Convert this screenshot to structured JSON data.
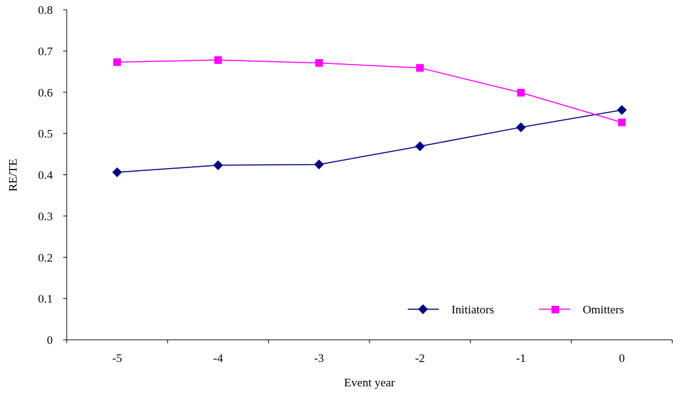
{
  "chart_data": {
    "type": "line",
    "title": "",
    "xlabel": "Event year",
    "ylabel": "RE/TE",
    "categories": [
      "-5",
      "-4",
      "-3",
      "-2",
      "-1",
      "0"
    ],
    "ylim": [
      0,
      0.8
    ],
    "yticks": [
      "0",
      "0.1",
      "0.2",
      "0.3",
      "0.4",
      "0.5",
      "0.6",
      "0.7",
      "0.8"
    ],
    "grid": false,
    "legend_position": "bottom-right",
    "series": [
      {
        "name": "Initiators",
        "color": "#000080",
        "marker": "diamond",
        "values": [
          0.406,
          0.423,
          0.425,
          0.469,
          0.515,
          0.557
        ]
      },
      {
        "name": "Omitters",
        "color": "#FF00FF",
        "marker": "square",
        "values": [
          0.673,
          0.678,
          0.671,
          0.659,
          0.599,
          0.527
        ]
      }
    ]
  }
}
